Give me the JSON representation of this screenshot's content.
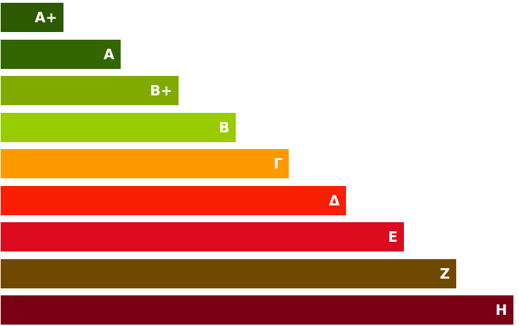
{
  "ratings": [
    {
      "label": "A+",
      "color": "#2d5a00"
    },
    {
      "label": "A",
      "color": "#336600"
    },
    {
      "label": "B+",
      "color": "#80aa00"
    },
    {
      "label": "B",
      "color": "#99cc00"
    },
    {
      "label": "Γ",
      "color": "#ff9900"
    },
    {
      "label": "Δ",
      "color": "#fa1e05"
    },
    {
      "label": "E",
      "color": "#dc0c1e"
    },
    {
      "label": "Z",
      "color": "#704900"
    },
    {
      "label": "H",
      "color": "#7a0016"
    }
  ]
}
